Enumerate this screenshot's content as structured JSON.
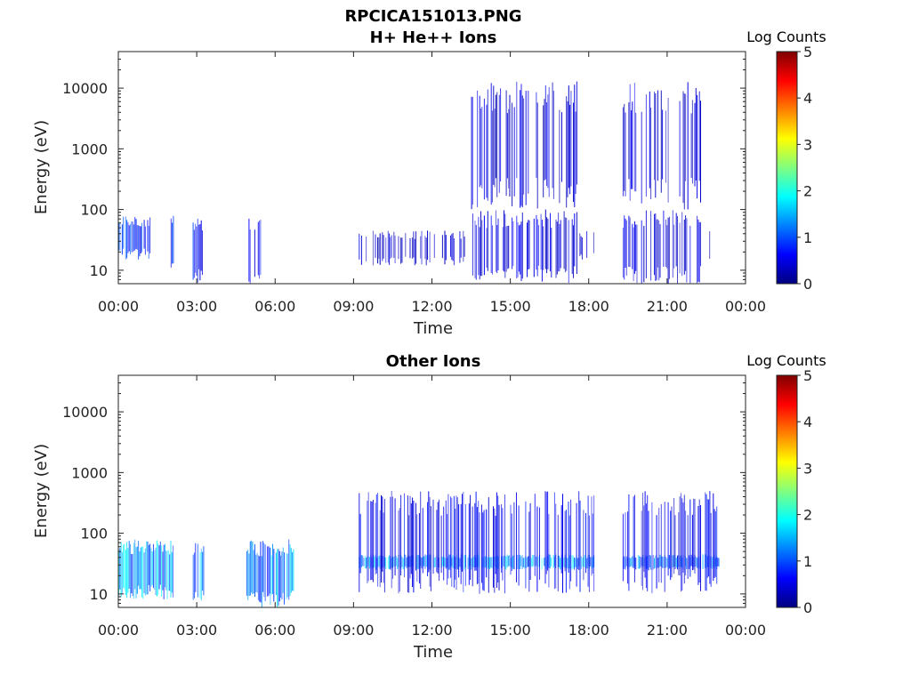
{
  "figure_title": "RPCICA151013.PNG",
  "chart_data": [
    {
      "type": "heatmap",
      "title": "H+ He++ Ions",
      "xlabel": "Time",
      "ylabel": "Energy (eV)",
      "x_scale": "time",
      "y_scale": "log",
      "xlim": [
        "00:00",
        "24:00"
      ],
      "ylim": [
        6,
        40000
      ],
      "x_tick_labels": [
        "00:00",
        "03:00",
        "06:00",
        "09:00",
        "12:00",
        "15:00",
        "18:00",
        "21:00",
        "00:00"
      ],
      "y_tick_values": [
        10,
        100,
        1000,
        10000
      ],
      "y_tick_labels": [
        "10",
        "100",
        "1000",
        "10000"
      ],
      "colorbar": {
        "title": "Log Counts",
        "min": 0,
        "max": 5,
        "tick_labels": [
          "0",
          "1",
          "2",
          "3",
          "4",
          "5"
        ],
        "colormap": "jet"
      },
      "regions": [
        {
          "start_hour": 0.0,
          "end_hour": 1.2,
          "emin": 15,
          "emax": 80,
          "level": 0.8,
          "density": 0.85
        },
        {
          "start_hour": 2.0,
          "end_hour": 2.1,
          "emin": 10,
          "emax": 80,
          "level": 0.7,
          "density": 0.8
        },
        {
          "start_hour": 2.8,
          "end_hour": 3.2,
          "emin": 6,
          "emax": 80,
          "level": 0.7,
          "density": 0.8
        },
        {
          "start_hour": 4.85,
          "end_hour": 5.5,
          "emin": 6,
          "emax": 80,
          "level": 0.6,
          "density": 0.65
        },
        {
          "start_hour": 9.2,
          "end_hour": 13.5,
          "emin": 12,
          "emax": 45,
          "level": 0.35,
          "density": 0.45
        },
        {
          "start_hour": 13.5,
          "end_hour": 17.6,
          "emin": 100,
          "emax": 13000,
          "level": 0.4,
          "density": 0.55
        },
        {
          "start_hour": 13.5,
          "end_hour": 17.6,
          "emin": 6,
          "emax": 100,
          "level": 0.45,
          "density": 0.6
        },
        {
          "start_hour": 17.6,
          "end_hour": 18.2,
          "emin": 15,
          "emax": 45,
          "level": 0.35,
          "density": 0.4
        },
        {
          "start_hour": 19.3,
          "end_hour": 22.3,
          "emin": 100,
          "emax": 13000,
          "level": 0.4,
          "density": 0.55
        },
        {
          "start_hour": 19.3,
          "end_hour": 22.3,
          "emin": 6,
          "emax": 100,
          "level": 0.45,
          "density": 0.6
        },
        {
          "start_hour": 22.3,
          "end_hour": 22.9,
          "emin": 15,
          "emax": 45,
          "level": 0.35,
          "density": 0.4
        }
      ]
    },
    {
      "type": "heatmap",
      "title": "Other Ions",
      "xlabel": "Time",
      "ylabel": "Energy (eV)",
      "x_scale": "time",
      "y_scale": "log",
      "xlim": [
        "00:00",
        "24:00"
      ],
      "ylim": [
        6,
        40000
      ],
      "x_tick_labels": [
        "00:00",
        "03:00",
        "06:00",
        "09:00",
        "12:00",
        "15:00",
        "18:00",
        "21:00",
        "00:00"
      ],
      "y_tick_values": [
        10,
        100,
        1000,
        10000
      ],
      "y_tick_labels": [
        "10",
        "100",
        "1000",
        "10000"
      ],
      "colorbar": {
        "title": "Log Counts",
        "min": 0,
        "max": 5,
        "tick_labels": [
          "0",
          "1",
          "2",
          "3",
          "4",
          "5"
        ],
        "colormap": "jet"
      },
      "regions": [
        {
          "start_hour": 0.0,
          "end_hour": 2.1,
          "emin": 8,
          "emax": 80,
          "level": 1.4,
          "density": 0.95
        },
        {
          "start_hour": 2.85,
          "end_hour": 3.25,
          "emin": 6,
          "emax": 80,
          "level": 1.3,
          "density": 0.9
        },
        {
          "start_hour": 4.9,
          "end_hour": 5.8,
          "emin": 6,
          "emax": 80,
          "level": 1.0,
          "density": 0.9
        },
        {
          "start_hour": 5.8,
          "end_hour": 6.7,
          "emin": 6,
          "emax": 80,
          "level": 1.5,
          "density": 0.9
        },
        {
          "start_hour": 9.2,
          "end_hour": 18.2,
          "emin": 25,
          "emax": 45,
          "level": 1.4,
          "density": 0.9
        },
        {
          "start_hour": 9.2,
          "end_hour": 18.2,
          "emin": 10,
          "emax": 500,
          "level": 0.55,
          "density": 0.6
        },
        {
          "start_hour": 19.3,
          "end_hour": 23.0,
          "emin": 25,
          "emax": 45,
          "level": 1.1,
          "density": 0.9
        },
        {
          "start_hour": 19.3,
          "end_hour": 23.0,
          "emin": 10,
          "emax": 500,
          "level": 0.55,
          "density": 0.6
        }
      ]
    }
  ]
}
